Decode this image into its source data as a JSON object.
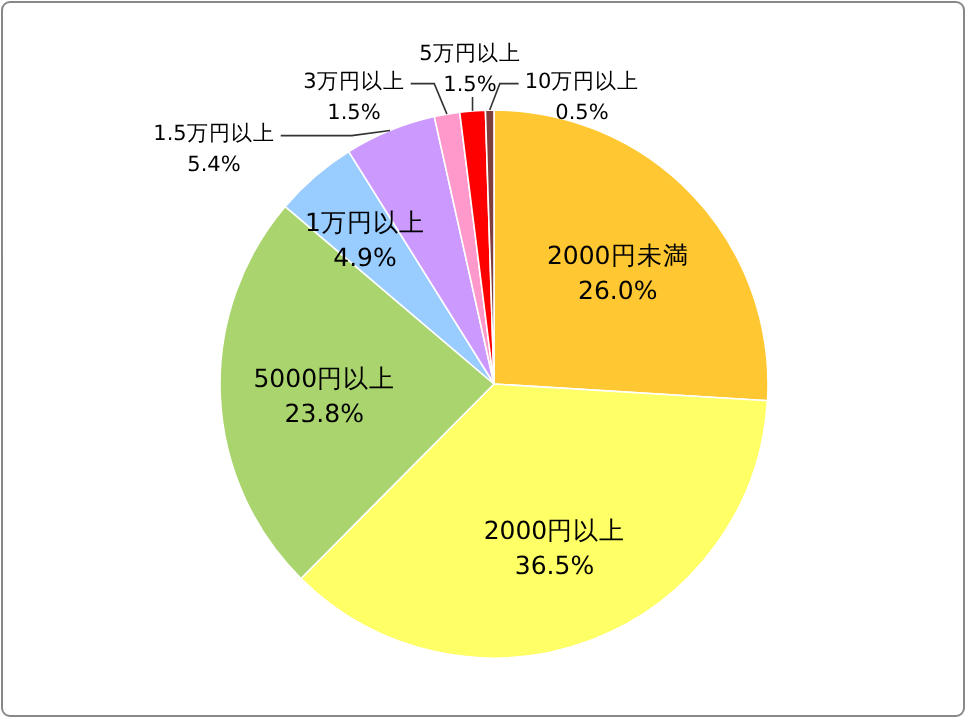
{
  "chart_data": {
    "type": "pie",
    "categories": [
      "2000円未満",
      "2000円以上",
      "5000円以上",
      "1万円以上",
      "1.5万円以上",
      "3万円以上",
      "5万円以上",
      "10万円以上"
    ],
    "values": [
      26.0,
      36.5,
      23.8,
      4.9,
      5.4,
      1.5,
      1.5,
      0.5
    ],
    "value_labels": [
      "26.0%",
      "36.5%",
      "23.8%",
      "4.9%",
      "5.4%",
      "1.5%",
      "1.5%",
      "0.5%"
    ],
    "colors": [
      "#ffc832",
      "#ffff66",
      "#a9d46e",
      "#99ccff",
      "#cc99ff",
      "#ff99cc",
      "#ff0000",
      "#7f3f3f"
    ],
    "legend": false
  }
}
